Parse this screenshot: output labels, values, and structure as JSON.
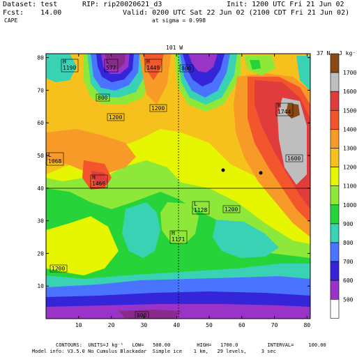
{
  "header": {
    "dataset": "Dataset: test",
    "rip": "RIP: rip20020621_d3",
    "init": "Init: 1200 UTC Fri 21 Jun 02",
    "fcst": "Fcst:    14.00",
    "valid": "Valid: 0200 UTC Sat 22 Jun 02 (2100 CDT Fri 21 Jun 02)",
    "field": "CAPE",
    "sigma": "at sigma = 0.998"
  },
  "map": {
    "top_label": "101 W",
    "right_label": "37 N",
    "x_ticks": [
      "10",
      "20",
      "30",
      "40",
      "50",
      "60",
      "70",
      "80"
    ],
    "y_ticks": [
      "10",
      "20",
      "30",
      "40",
      "50",
      "60",
      "70",
      "80"
    ],
    "annotations": [
      {
        "sym": "H",
        "val": "1190"
      },
      {
        "sym": "L",
        "val": "577"
      },
      {
        "sym": "H",
        "val": "1449"
      },
      {
        "sym": "",
        "val": "800"
      },
      {
        "sym": "",
        "val": "800"
      },
      {
        "sym": "",
        "val": "1200"
      },
      {
        "sym": "",
        "val": "1200"
      },
      {
        "sym": "L",
        "val": "1068"
      },
      {
        "sym": "H",
        "val": "1466"
      },
      {
        "sym": "H",
        "val": "1744"
      },
      {
        "sym": "",
        "val": "1600"
      },
      {
        "sym": "L",
        "val": "1128"
      },
      {
        "sym": "",
        "val": "1200"
      },
      {
        "sym": "H",
        "val": "1171"
      },
      {
        "sym": "",
        "val": "1200"
      },
      {
        "sym": "",
        "val": "800"
      }
    ]
  },
  "legend": {
    "units": "J kg⁻¹",
    "entries": [
      {
        "label": "1700",
        "color": "#8a4a14"
      },
      {
        "label": "1600",
        "color": "#bebebe"
      },
      {
        "label": "1500",
        "color": "#e03c3c"
      },
      {
        "label": "1400",
        "color": "#f3552d"
      },
      {
        "label": "1300",
        "color": "#f79a28"
      },
      {
        "label": "1200",
        "color": "#f6c11d"
      },
      {
        "label": "1100",
        "color": "#e6f500"
      },
      {
        "label": "1000",
        "color": "#8ee83a"
      },
      {
        "label": "900",
        "color": "#26d43a"
      },
      {
        "label": "800",
        "color": "#3ad2b4"
      },
      {
        "label": "700",
        "color": "#4a74ff"
      },
      {
        "label": "600",
        "color": "#3426d8"
      },
      {
        "label": "500",
        "color": "#9a34c8"
      },
      {
        "label": "",
        "color": "#ffffff"
      }
    ]
  },
  "footer": {
    "contours": "CONTOURS:  UNITS=J kg⁻¹   LOW=   500.00         HIGH=   1700.0          INTERVAL=     100.00",
    "model": "Model info: V3.5.0 No Cumulus Blackadar  Simple ice    1 km,   29 levels,     3 sec"
  }
}
